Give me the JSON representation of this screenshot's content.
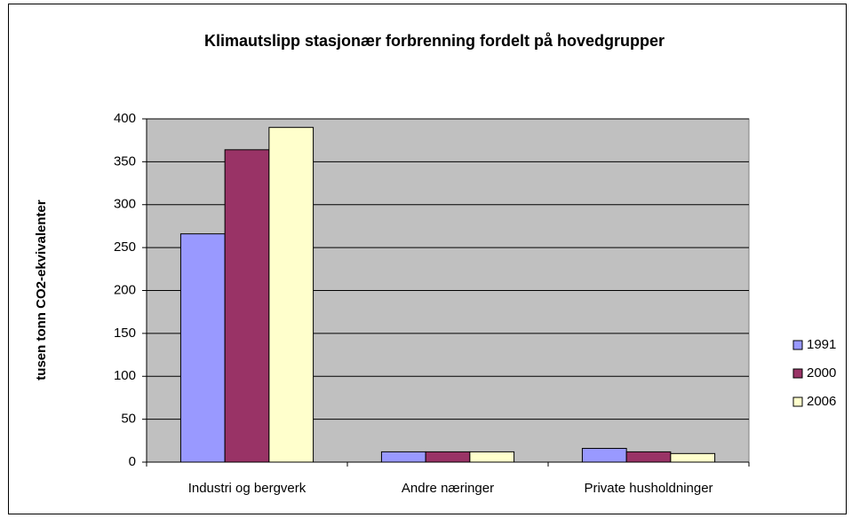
{
  "chart_data": {
    "type": "bar",
    "title": "Klimautslipp stasjonær forbrenning fordelt på hovedgrupper",
    "y_label": "tusen tonn CO2-ekvivalenter",
    "categories": [
      "Industri og bergverk",
      "Andre næringer",
      "Private husholdninger"
    ],
    "series": [
      {
        "name": "1991",
        "color": "#9999ff",
        "values": [
          266,
          12,
          16
        ]
      },
      {
        "name": "2000",
        "color": "#993366",
        "values": [
          364,
          12,
          12
        ]
      },
      {
        "name": "2006",
        "color": "#ffffcc",
        "values": [
          390,
          12,
          10
        ]
      }
    ],
    "ylim": [
      0,
      400
    ],
    "yticks": [
      0,
      50,
      100,
      150,
      200,
      250,
      300,
      350,
      400
    ],
    "grid": true,
    "legend": "right"
  }
}
